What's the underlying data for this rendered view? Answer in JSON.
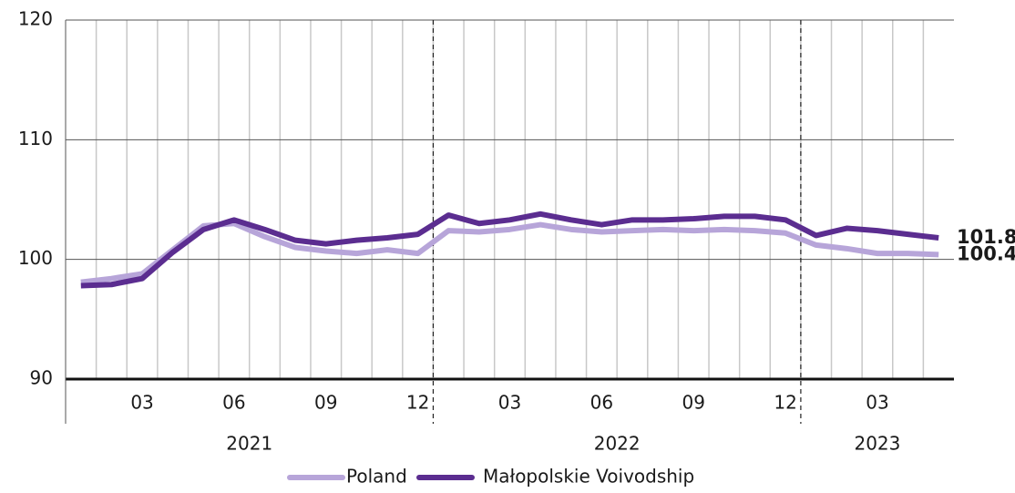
{
  "chart_data": {
    "type": "line",
    "categories": [
      null,
      null,
      "03",
      null,
      null,
      "06",
      null,
      null,
      "09",
      null,
      null,
      "12",
      null,
      null,
      "03",
      null,
      null,
      "06",
      null,
      null,
      "09",
      null,
      null,
      "12",
      null,
      null,
      "03",
      null,
      null
    ],
    "year_groups": [
      {
        "label": "2021",
        "months": 12
      },
      {
        "label": "2022",
        "months": 12
      },
      {
        "label": "2023",
        "months": 5
      }
    ],
    "series": [
      {
        "name": "Poland",
        "color": "#b7a5d9",
        "values": [
          98.1,
          98.4,
          98.8,
          100.8,
          102.8,
          103.0,
          101.9,
          101.0,
          100.7,
          100.5,
          100.8,
          100.5,
          102.4,
          102.3,
          102.5,
          102.9,
          102.5,
          102.3,
          102.4,
          102.5,
          102.4,
          102.5,
          102.4,
          102.2,
          101.2,
          100.9,
          100.5,
          100.5,
          100.4
        ]
      },
      {
        "name": "Małopolskie Voivodship",
        "color": "#5b2d90",
        "values": [
          97.8,
          97.9,
          98.4,
          100.6,
          102.5,
          103.3,
          102.5,
          101.6,
          101.3,
          101.6,
          101.8,
          102.1,
          103.7,
          103.0,
          103.3,
          103.8,
          103.3,
          102.9,
          103.3,
          103.3,
          103.4,
          103.6,
          103.6,
          103.3,
          102.0,
          102.6,
          102.4,
          102.1,
          101.8
        ]
      }
    ],
    "ylim": [
      90,
      120
    ],
    "yticks": [
      90,
      100,
      110,
      120
    ],
    "grid": true
  }
}
